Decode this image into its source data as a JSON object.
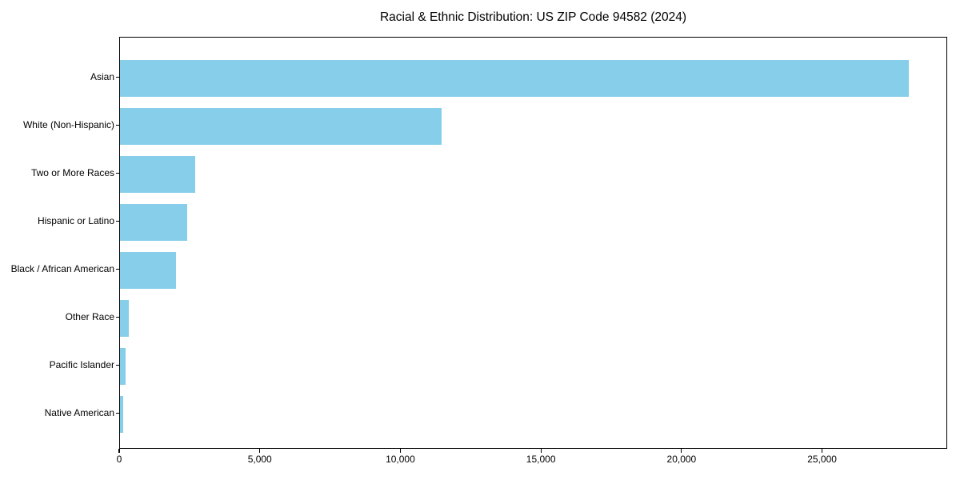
{
  "chart_data": {
    "type": "bar",
    "orientation": "horizontal",
    "title": "Racial & Ethnic Distribution: US ZIP Code 94582 (2024)",
    "categories": [
      "Asian",
      "White (Non-Hispanic)",
      "Two or More Races",
      "Hispanic or Latino",
      "Black / African American",
      "Other Race",
      "Pacific Islander",
      "Native American"
    ],
    "values": [
      28050,
      11450,
      2680,
      2400,
      2000,
      310,
      200,
      110
    ],
    "xlabel": "",
    "ylabel": "",
    "xlim": [
      0,
      29450
    ],
    "xticks": [
      0,
      5000,
      10000,
      15000,
      20000,
      25000
    ],
    "xtick_labels": [
      "0",
      "5,000",
      "10,000",
      "15,000",
      "20,000",
      "25,000"
    ],
    "grid": false,
    "legend": null,
    "bar_color": "#87CEEB",
    "text_color": "#000000",
    "background_color": "#ffffff"
  }
}
